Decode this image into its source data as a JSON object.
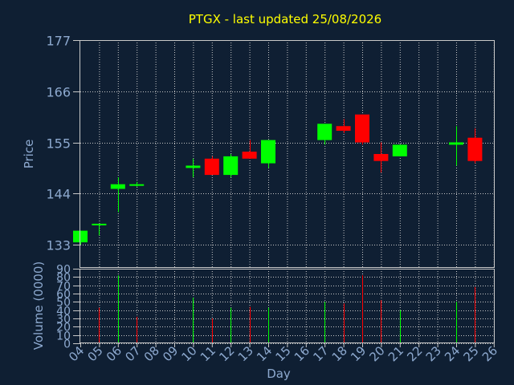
{
  "title": "PTGX - last updated 25/08/2026",
  "colors": {
    "background": "#0f1f33",
    "plot_border": "#c8c8c8",
    "grid": "#c8c8c8",
    "label": "#8da9cf",
    "title": "#ffff00",
    "up": "#00ff00",
    "down": "#ff0000"
  },
  "chart_data": [
    {
      "type": "candlestick",
      "ylabel": "Price",
      "ylim": [
        128,
        177
      ],
      "yticks": [
        133,
        144,
        155,
        166,
        177
      ],
      "grid": true,
      "candles": [
        {
          "day": "04",
          "open": 133.5,
          "close": 136.0,
          "high": 136.0,
          "low": 133.0
        },
        {
          "day": "05",
          "open": 137.5,
          "close": 137.5,
          "high": 137.5,
          "low": 135.0
        },
        {
          "day": "06",
          "open": 145.0,
          "close": 146.0,
          "high": 147.5,
          "low": 140.0
        },
        {
          "day": "07",
          "open": 146.0,
          "close": 146.0,
          "high": 146.5,
          "low": 145.5
        },
        {
          "day": "10",
          "open": 149.5,
          "close": 150.0,
          "high": 151.5,
          "low": 147.5
        },
        {
          "day": "11",
          "open": 151.5,
          "close": 148.0,
          "high": 152.0,
          "low": 148.0
        },
        {
          "day": "12",
          "open": 148.0,
          "close": 152.0,
          "high": 152.5,
          "low": 147.5
        },
        {
          "day": "13",
          "open": 153.0,
          "close": 151.5,
          "high": 155.5,
          "low": 151.5
        },
        {
          "day": "14",
          "open": 150.5,
          "close": 155.5,
          "high": 155.5,
          "low": 149.5
        },
        {
          "day": "17",
          "open": 155.5,
          "close": 159.0,
          "high": 159.0,
          "low": 154.5
        },
        {
          "day": "18",
          "open": 158.5,
          "close": 157.5,
          "high": 160.0,
          "low": 157.0
        },
        {
          "day": "19",
          "open": 161.0,
          "close": 155.0,
          "high": 161.0,
          "low": 154.5
        },
        {
          "day": "20",
          "open": 152.5,
          "close": 151.0,
          "high": 155.0,
          "low": 148.5
        },
        {
          "day": "21",
          "open": 152.0,
          "close": 154.5,
          "high": 154.5,
          "low": 152.0
        },
        {
          "day": "24",
          "open": 154.5,
          "close": 155.0,
          "high": 158.5,
          "low": 150.0
        },
        {
          "day": "25",
          "open": 156.0,
          "close": 151.0,
          "high": 158.0,
          "low": 150.5
        }
      ]
    },
    {
      "type": "bar",
      "ylabel": "Volume (0000)",
      "xlabel": "Day",
      "ylim": [
        0,
        90
      ],
      "yticks": [
        0,
        10,
        20,
        30,
        40,
        50,
        60,
        70,
        80,
        90
      ],
      "xticks": [
        "04",
        "05",
        "06",
        "07",
        "08",
        "09",
        "10",
        "11",
        "12",
        "13",
        "14",
        "15",
        "16",
        "17",
        "18",
        "19",
        "20",
        "21",
        "22",
        "23",
        "24",
        "25",
        "26"
      ],
      "grid": true,
      "bars": [
        {
          "day": "04",
          "value": 0,
          "direction": "up"
        },
        {
          "day": "05",
          "value": 43,
          "direction": "down"
        },
        {
          "day": "06",
          "value": 82,
          "direction": "up"
        },
        {
          "day": "07",
          "value": 32,
          "direction": "down"
        },
        {
          "day": "10",
          "value": 55,
          "direction": "up"
        },
        {
          "day": "11",
          "value": 30,
          "direction": "down"
        },
        {
          "day": "12",
          "value": 43,
          "direction": "up"
        },
        {
          "day": "13",
          "value": 44,
          "direction": "down"
        },
        {
          "day": "14",
          "value": 43,
          "direction": "up"
        },
        {
          "day": "17",
          "value": 50,
          "direction": "up"
        },
        {
          "day": "18",
          "value": 48,
          "direction": "down"
        },
        {
          "day": "19",
          "value": 82,
          "direction": "down"
        },
        {
          "day": "20",
          "value": 52,
          "direction": "down"
        },
        {
          "day": "21",
          "value": 40,
          "direction": "up"
        },
        {
          "day": "24",
          "value": 50,
          "direction": "up"
        },
        {
          "day": "25",
          "value": 68,
          "direction": "down"
        }
      ]
    }
  ]
}
